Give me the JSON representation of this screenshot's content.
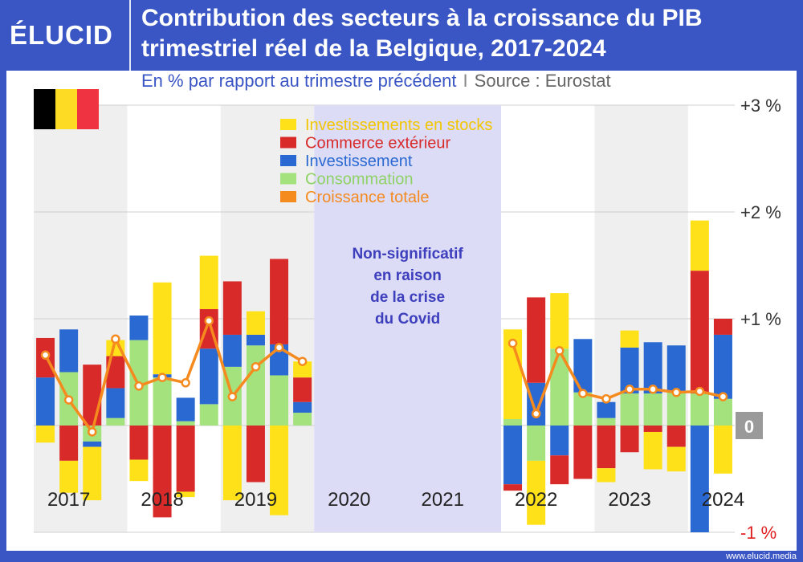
{
  "header": {
    "logo": "ÉLUCID",
    "title_line1": "Contribution des secteurs à la croissance du PIB",
    "title_line2": "trimestriel réel de la Belgique, 2017-2024",
    "subtitle": "En % par rapport au trimestre précédent",
    "subtitle_sep": "I",
    "source": "Source : Eurostat"
  },
  "footer": {
    "url": "www.elucid.media"
  },
  "colors": {
    "stocks": "#ffe11a",
    "commerce": "#d92a2a",
    "investissement": "#2a69d1",
    "consommation": "#a4e27e",
    "croissance": "#f58a1f",
    "covid_band": "#dcdcf7",
    "covid_text": "#3d3fbd",
    "alt_band": "#efefef",
    "zero_box": "#9a9a9a",
    "neg_label": "#e02020"
  },
  "chart_data": {
    "type": "bar",
    "stacked": true,
    "title": "Contribution des secteurs à la croissance du PIB trimestriel réel de la Belgique, 2017-2024",
    "ylabel": "En % par rapport au trimestre précédent",
    "ylim": [
      -1,
      3
    ],
    "yticks": [
      {
        "value": 3,
        "label": "+3 %"
      },
      {
        "value": 2,
        "label": "+2 %"
      },
      {
        "value": 1,
        "label": "+1 %"
      },
      {
        "value": 0,
        "label": "0"
      },
      {
        "value": -1,
        "label": "-1 %"
      }
    ],
    "years": [
      "2017",
      "2018",
      "2019",
      "2020",
      "2021",
      "2022",
      "2023",
      "2024"
    ],
    "quarters": [
      "2017T1",
      "2017T2",
      "2017T3",
      "2017T4",
      "2018T1",
      "2018T2",
      "2018T3",
      "2018T4",
      "2019T1",
      "2019T2",
      "2019T3",
      "2019T4",
      "2020T1",
      "2020T2",
      "2020T3",
      "2020T4",
      "2021T1",
      "2021T2",
      "2021T3",
      "2021T4",
      "2022T1",
      "2022T2",
      "2022T3",
      "2022T4",
      "2023T1",
      "2023T2",
      "2023T3",
      "2023T4",
      "2024T1",
      "2024T2"
    ],
    "covid_label": [
      "Non-significatif",
      "en raison",
      "de la crise",
      "du Covid"
    ],
    "covid_range": [
      "2020T1",
      "2021T4"
    ],
    "series": [
      {
        "key": "consommation",
        "name": "Consommation",
        "values": [
          0,
          0.5,
          -0.15,
          0.07,
          0.8,
          0.45,
          0.04,
          0.2,
          0.55,
          0.75,
          0.47,
          0.12,
          null,
          null,
          null,
          null,
          null,
          null,
          null,
          null,
          0.06,
          -0.33,
          0.72,
          0.31,
          0.07,
          0.3,
          0.3,
          0.32,
          0.3,
          0.25
        ]
      },
      {
        "key": "investissement",
        "name": "Investissement",
        "values": [
          0.45,
          0.4,
          -0.05,
          0.28,
          0.23,
          0.03,
          0.22,
          0.52,
          0.3,
          0.1,
          0.29,
          0.1,
          null,
          null,
          null,
          null,
          null,
          null,
          null,
          null,
          -0.55,
          0.4,
          -0.28,
          0.5,
          0.15,
          0.43,
          0.48,
          0.43,
          -1.0,
          0.6
        ]
      },
      {
        "key": "commerce",
        "name": "Commerce extérieur",
        "values": [
          0.37,
          -0.33,
          0.57,
          0.3,
          -0.32,
          -0.86,
          -0.62,
          0.37,
          0.5,
          -0.53,
          0.8,
          0.23,
          null,
          null,
          null,
          null,
          null,
          null,
          null,
          null,
          -0.06,
          0.8,
          -0.27,
          -0.5,
          -0.4,
          -0.25,
          -0.06,
          -0.2,
          1.15,
          0.15
        ]
      },
      {
        "key": "stocks",
        "name": "Investissements en stocks",
        "values": [
          -0.16,
          -0.3,
          -0.5,
          0.15,
          -0.2,
          0.86,
          -0.05,
          0.5,
          -0.7,
          0.22,
          -0.84,
          0.15,
          null,
          null,
          null,
          null,
          null,
          null,
          null,
          null,
          0.84,
          -0.6,
          0.52,
          0.0,
          -0.13,
          0.16,
          -0.35,
          -0.23,
          0.47,
          -0.45
        ]
      }
    ],
    "total": {
      "key": "croissance",
      "name": "Croissance totale",
      "values": [
        0.66,
        0.24,
        -0.06,
        0.81,
        0.37,
        0.45,
        0.4,
        0.98,
        0.27,
        0.55,
        0.73,
        0.6,
        null,
        null,
        null,
        null,
        null,
        null,
        null,
        null,
        0.77,
        0.11,
        0.7,
        0.3,
        0.25,
        0.34,
        0.34,
        0.31,
        0.32,
        0.27
      ]
    },
    "legend": [
      "Investissements en stocks",
      "Commerce extérieur",
      "Investissement",
      "Consommation",
      "Croissance totale"
    ],
    "legend_position": "top-center"
  }
}
